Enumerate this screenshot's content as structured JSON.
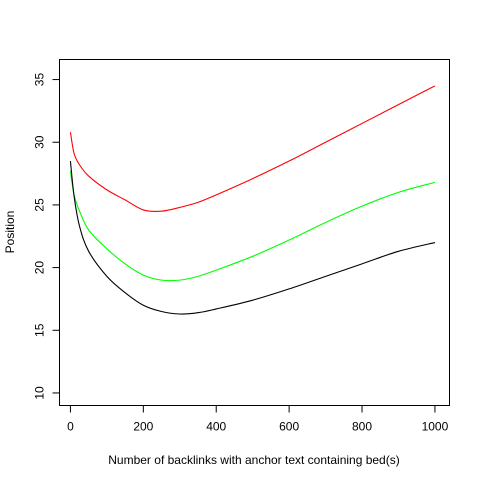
{
  "chart_data": {
    "type": "line",
    "title": "",
    "xlabel": "Number of backlinks with anchor text containing bed(s)",
    "ylabel": "Position",
    "xlim": [
      -30,
      1040
    ],
    "ylim": [
      9.0,
      36.6
    ],
    "x_ticks": [
      0,
      200,
      400,
      600,
      800,
      1000
    ],
    "y_ticks": [
      10,
      15,
      20,
      25,
      30,
      35
    ],
    "grid": false,
    "legend": "none",
    "series": [
      {
        "color": "#ff0000",
        "x": [
          0,
          10,
          25,
          50,
          100,
          150,
          200,
          250,
          300,
          350,
          400,
          500,
          600,
          700,
          800,
          900,
          1000
        ],
        "y": [
          30.8,
          29.1,
          28.2,
          27.3,
          26.2,
          25.4,
          24.6,
          24.5,
          24.8,
          25.2,
          25.8,
          27.1,
          28.5,
          30.0,
          31.5,
          33.0,
          34.5
        ]
      },
      {
        "color": "#00ff00",
        "x": [
          0,
          10,
          25,
          50,
          100,
          150,
          200,
          250,
          300,
          350,
          400,
          500,
          600,
          700,
          800,
          900,
          1000
        ],
        "y": [
          27.7,
          25.8,
          24.5,
          23.0,
          21.5,
          20.3,
          19.4,
          19.0,
          19.0,
          19.3,
          19.8,
          20.9,
          22.2,
          23.6,
          24.9,
          26.0,
          26.8
        ]
      },
      {
        "color": "#000000",
        "x": [
          0,
          10,
          25,
          50,
          100,
          150,
          200,
          250,
          300,
          350,
          400,
          500,
          600,
          700,
          800,
          900,
          1000
        ],
        "y": [
          28.5,
          25.7,
          23.3,
          21.3,
          19.3,
          18.0,
          17.0,
          16.5,
          16.3,
          16.4,
          16.7,
          17.4,
          18.3,
          19.3,
          20.3,
          21.3,
          22.0
        ]
      }
    ]
  }
}
